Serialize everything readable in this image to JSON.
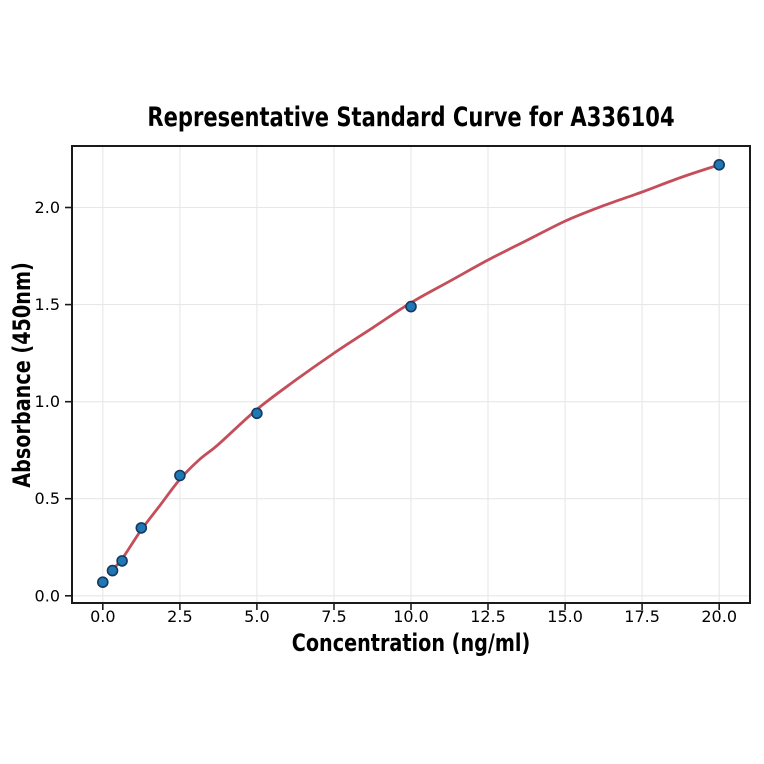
{
  "chart_data": {
    "type": "scatter",
    "title": "Representative Standard Curve for A336104",
    "xlabel": "Concentration (ng/ml)",
    "ylabel": "Absorbance (450nm)",
    "xlim": [
      -1.0,
      21.0
    ],
    "ylim": [
      -0.037,
      2.317
    ],
    "grid": true,
    "legend": "none",
    "x_ticks": [
      0.0,
      2.5,
      5.0,
      7.5,
      10.0,
      12.5,
      15.0,
      17.5,
      20.0
    ],
    "x_tick_labels": [
      "0.0",
      "2.5",
      "5.0",
      "7.5",
      "10.0",
      "12.5",
      "15.0",
      "17.5",
      "20.0"
    ],
    "y_ticks": [
      0.0,
      0.5,
      1.0,
      1.5,
      2.0
    ],
    "y_tick_labels": [
      "0.0",
      "0.5",
      "1.0",
      "1.5",
      "2.0"
    ],
    "points": [
      [
        0.0,
        0.07
      ],
      [
        0.313,
        0.13
      ],
      [
        0.625,
        0.18
      ],
      [
        1.25,
        0.35
      ],
      [
        2.5,
        0.62
      ],
      [
        5.0,
        0.94
      ],
      [
        10.0,
        1.49
      ],
      [
        20.0,
        2.22
      ]
    ],
    "fit_curve": [
      [
        0.313,
        0.135
      ],
      [
        0.625,
        0.19
      ],
      [
        1.25,
        0.34
      ],
      [
        1.875,
        0.47
      ],
      [
        2.5,
        0.6
      ],
      [
        3.125,
        0.7
      ],
      [
        3.75,
        0.78
      ],
      [
        5.0,
        0.96
      ],
      [
        6.25,
        1.11
      ],
      [
        7.5,
        1.25
      ],
      [
        8.75,
        1.38
      ],
      [
        10.0,
        1.51
      ],
      [
        11.25,
        1.62
      ],
      [
        12.5,
        1.73
      ],
      [
        13.75,
        1.83
      ],
      [
        15.0,
        1.93
      ],
      [
        16.25,
        2.01
      ],
      [
        17.5,
        2.08
      ],
      [
        18.75,
        2.155
      ],
      [
        20.0,
        2.22
      ]
    ],
    "colors": {
      "point_fill": "#1f77b4",
      "point_edge": "#153a5f",
      "curve": "#c44e5a",
      "grid": "#e7e7e7",
      "axis": "#1a1a1a",
      "text": "#000000",
      "background": "#ffffff"
    }
  }
}
